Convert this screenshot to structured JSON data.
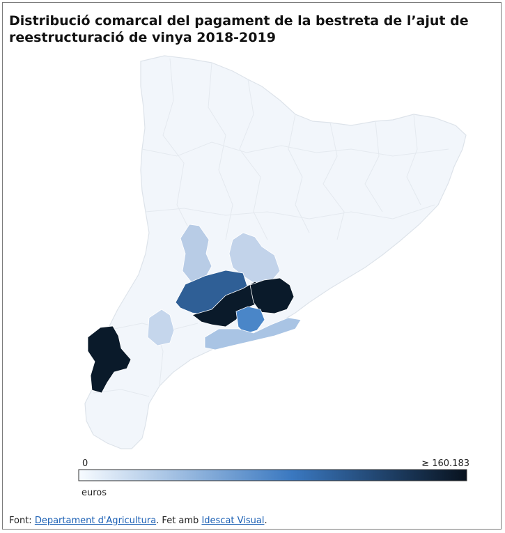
{
  "title": "Distribució comarcal del pagament de la bestreta de l’ajut de reestructuració de vinya 2018-2019",
  "legend": {
    "min_label": "0",
    "max_label": "≥ 160.183",
    "unit": "euros",
    "color_low": "#f7fbff",
    "color_mid": "#3a78c0",
    "color_high": "#08121e"
  },
  "source": {
    "prefix": "Font: ",
    "link1": "Departament d'Agricultura",
    "middle": ". Fet amb ",
    "link2": "Idescat Visual",
    "suffix": "."
  },
  "map": {
    "region": "Catalunya",
    "unit": "comarques",
    "base_color": "#f2f6fb",
    "border_color": "#e3e8ee",
    "shaded_comarques": [
      {
        "name": "comarca-high-south",
        "level": "highest",
        "color": "#0a1a2a"
      },
      {
        "name": "comarca-high-center",
        "level": "highest",
        "color": "#0a1a2a"
      },
      {
        "name": "comarca-high-east",
        "level": "highest",
        "color": "#0a1a2a"
      },
      {
        "name": "comarca-dark-blue",
        "level": "high",
        "color": "#2f5f96"
      },
      {
        "name": "comarca-mid-blue",
        "level": "medium",
        "color": "#4a86c8"
      },
      {
        "name": "comarca-light-north",
        "level": "low",
        "color": "#b8cce6"
      },
      {
        "name": "comarca-light-east",
        "level": "low",
        "color": "#c2d3ea"
      },
      {
        "name": "comarca-light-west",
        "level": "low",
        "color": "#c5d6ec"
      },
      {
        "name": "comarca-light-coast",
        "level": "low",
        "color": "#a9c4e4"
      }
    ]
  }
}
